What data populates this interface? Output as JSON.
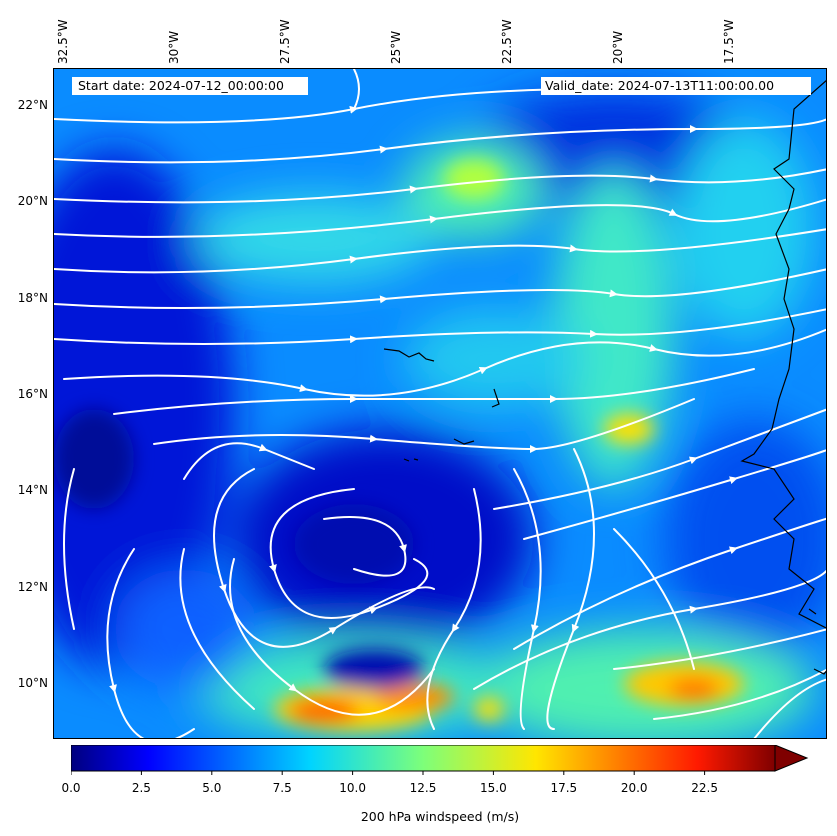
{
  "header": {
    "start_date": "Start date: 2024-07-12_00:00:00",
    "valid_date": "Valid_date: 2024-07-13T11:00:00.00"
  },
  "map": {
    "lon_labels": [
      "32.5°W",
      "30°W",
      "27.5°W",
      "25°W",
      "22.5°W",
      "20°W",
      "17.5°W"
    ],
    "lat_labels": [
      "22°N",
      "20°N",
      "18°N",
      "16°N",
      "14°N",
      "12°N",
      "10°N"
    ],
    "lon_range": [
      -32.5,
      -15.0
    ],
    "lat_range": [
      8.9,
      22.8
    ],
    "field": "200 hPa windspeed",
    "streamline_color": "#ffffff",
    "coastline_color": "#000000"
  },
  "colorbar": {
    "label": "200 hPa windspeed (m/s)",
    "ticks": [
      "0.0",
      "2.5",
      "5.0",
      "7.5",
      "10.0",
      "12.5",
      "15.0",
      "17.5",
      "20.0",
      "22.5"
    ],
    "range": [
      0,
      25
    ],
    "colormap": "jet",
    "extend": "max"
  }
}
